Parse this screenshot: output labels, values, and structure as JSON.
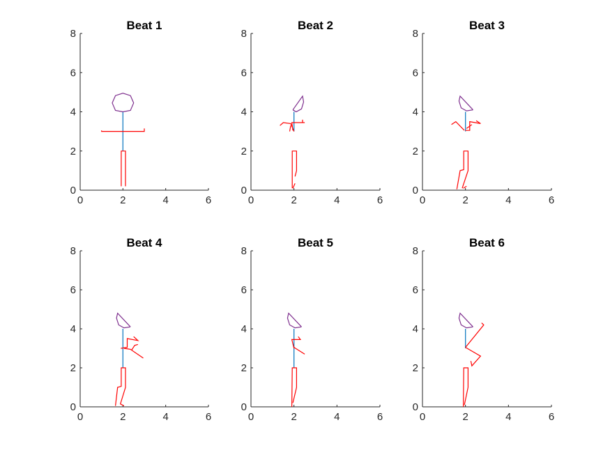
{
  "chart_data": [
    {
      "type": "line",
      "title": "Beat 1",
      "xlim": [
        0,
        6
      ],
      "ylim": [
        0,
        8
      ],
      "xticks": [
        "0",
        "2",
        "4",
        "6"
      ],
      "yticks": [
        "0",
        "2",
        "4",
        "6",
        "8"
      ],
      "figure": {
        "head": [
          [
            2.0,
            4.0
          ],
          [
            2.35,
            4.07
          ],
          [
            2.5,
            4.45
          ],
          [
            2.35,
            4.83
          ],
          [
            2.0,
            4.95
          ],
          [
            1.65,
            4.83
          ],
          [
            1.5,
            4.45
          ],
          [
            1.65,
            4.07
          ],
          [
            2.0,
            4.0
          ]
        ],
        "spine": [
          [
            2.0,
            4.0
          ],
          [
            2.0,
            2.0
          ]
        ],
        "limbs": [
          [
            [
              1.0,
              3.05
            ],
            [
              1.0,
              3.0
            ],
            [
              3.0,
              3.0
            ],
            [
              3.0,
              3.15
            ]
          ],
          [
            [
              2.0,
              3.0
            ],
            [
              2.0,
              3.0
            ]
          ],
          [
            [
              1.92,
              0.2
            ],
            [
              1.92,
              2.0
            ],
            [
              2.12,
              2.0
            ],
            [
              2.12,
              0.2
            ]
          ]
        ]
      }
    },
    {
      "type": "line",
      "title": "Beat 2",
      "xlim": [
        0,
        6
      ],
      "ylim": [
        0,
        8
      ],
      "xticks": [
        "0",
        "2",
        "4",
        "6"
      ],
      "yticks": [
        "0",
        "2",
        "4",
        "6",
        "8"
      ],
      "figure": {
        "head": [
          [
            1.95,
            4.1
          ],
          [
            2.1,
            4.0
          ],
          [
            2.35,
            4.15
          ],
          [
            2.45,
            4.5
          ],
          [
            2.4,
            4.8
          ],
          [
            1.95,
            4.1
          ]
        ],
        "spine": [
          [
            2.0,
            4.0
          ],
          [
            2.0,
            3.0
          ]
        ],
        "limbs": [
          [
            [
              2.0,
              3.0
            ],
            [
              1.85,
              3.4
            ],
            [
              1.5,
              3.45
            ],
            [
              1.35,
              3.3
            ]
          ],
          [
            [
              1.95,
              3.05
            ],
            [
              1.9,
              3.45
            ],
            [
              2.5,
              3.45
            ]
          ],
          [
            [
              2.4,
              3.45
            ],
            [
              2.4,
              3.6
            ]
          ],
          [
            [
              1.8,
              3.0
            ],
            [
              1.85,
              3.3
            ]
          ],
          [
            [
              1.92,
              0.1
            ],
            [
              1.92,
              2.0
            ],
            [
              2.12,
              2.0
            ],
            [
              2.12,
              1.0
            ],
            [
              2.05,
              0.7
            ]
          ],
          [
            [
              1.95,
              0.1
            ],
            [
              2.05,
              0.35
            ]
          ]
        ]
      }
    },
    {
      "type": "line",
      "title": "Beat 3",
      "xlim": [
        0,
        6
      ],
      "ylim": [
        0,
        8
      ],
      "xticks": [
        "0",
        "2",
        "4",
        "6"
      ],
      "yticks": [
        "0",
        "2",
        "4",
        "6",
        "8"
      ],
      "figure": {
        "head": [
          [
            2.35,
            4.1
          ],
          [
            2.05,
            4.05
          ],
          [
            1.8,
            4.2
          ],
          [
            1.7,
            4.55
          ],
          [
            1.75,
            4.8
          ],
          [
            2.35,
            4.1
          ]
        ],
        "spine": [
          [
            2.0,
            4.0
          ],
          [
            2.0,
            3.0
          ]
        ],
        "limbs": [
          [
            [
              1.95,
              3.05
            ],
            [
              1.55,
              3.5
            ],
            [
              1.35,
              3.35
            ]
          ],
          [
            [
              2.0,
              3.05
            ],
            [
              2.2,
              3.05
            ],
            [
              2.2,
              3.5
            ],
            [
              2.7,
              3.4
            ],
            [
              2.5,
              3.55
            ]
          ],
          [
            [
              2.05,
              3.15
            ],
            [
              2.3,
              3.35
            ]
          ],
          [
            [
              1.6,
              0.05
            ],
            [
              1.75,
              1.0
            ],
            [
              1.92,
              1.05
            ],
            [
              1.92,
              2.0
            ],
            [
              2.12,
              2.0
            ],
            [
              2.12,
              1.0
            ],
            [
              1.85,
              0.1
            ]
          ],
          [
            [
              1.9,
              0.1
            ],
            [
              2.05,
              0.2
            ]
          ]
        ]
      }
    },
    {
      "type": "line",
      "title": "Beat 4",
      "xlim": [
        0,
        6
      ],
      "ylim": [
        0,
        8
      ],
      "xticks": [
        "0",
        "2",
        "4",
        "6"
      ],
      "yticks": [
        "0",
        "2",
        "4",
        "6",
        "8"
      ],
      "figure": {
        "head": [
          [
            2.35,
            4.1
          ],
          [
            2.05,
            4.05
          ],
          [
            1.8,
            4.2
          ],
          [
            1.7,
            4.55
          ],
          [
            1.75,
            4.8
          ],
          [
            2.35,
            4.1
          ]
        ],
        "spine": [
          [
            2.0,
            4.0
          ],
          [
            2.0,
            2.0
          ]
        ],
        "limbs": [
          [
            [
              1.9,
              3.0
            ],
            [
              2.2,
              3.05
            ],
            [
              2.2,
              3.5
            ],
            [
              2.7,
              3.4
            ],
            [
              2.5,
              3.6
            ]
          ],
          [
            [
              2.05,
              3.0
            ],
            [
              2.35,
              2.95
            ],
            [
              2.95,
              2.5
            ]
          ],
          [
            [
              2.4,
              2.9
            ],
            [
              2.55,
              3.15
            ],
            [
              2.7,
              3.2
            ]
          ],
          [
            [
              1.65,
              0.05
            ],
            [
              1.75,
              1.0
            ],
            [
              1.92,
              1.05
            ],
            [
              1.92,
              2.0
            ],
            [
              2.12,
              2.0
            ],
            [
              2.12,
              1.0
            ],
            [
              1.88,
              0.15
            ],
            [
              2.05,
              0.05
            ]
          ]
        ]
      }
    },
    {
      "type": "line",
      "title": "Beat 5",
      "xlim": [
        0,
        6
      ],
      "ylim": [
        0,
        8
      ],
      "xticks": [
        "0",
        "2",
        "4",
        "6"
      ],
      "yticks": [
        "0",
        "2",
        "4",
        "6",
        "8"
      ],
      "figure": {
        "head": [
          [
            2.35,
            4.1
          ],
          [
            2.05,
            4.05
          ],
          [
            1.8,
            4.2
          ],
          [
            1.7,
            4.55
          ],
          [
            1.75,
            4.8
          ],
          [
            2.35,
            4.1
          ]
        ],
        "spine": [
          [
            2.0,
            4.0
          ],
          [
            2.0,
            2.0
          ]
        ],
        "limbs": [
          [
            [
              2.0,
              3.0
            ],
            [
              1.9,
              3.45
            ],
            [
              2.3,
              3.45
            ],
            [
              2.2,
              3.6
            ]
          ],
          [
            [
              2.0,
              3.05
            ],
            [
              2.5,
              2.7
            ]
          ],
          [
            [
              1.9,
              0.0
            ],
            [
              1.92,
              2.0
            ],
            [
              2.12,
              2.0
            ],
            [
              2.12,
              1.0
            ],
            [
              1.95,
              0.2
            ]
          ]
        ]
      }
    },
    {
      "type": "line",
      "title": "Beat 6",
      "xlim": [
        0,
        6
      ],
      "ylim": [
        0,
        8
      ],
      "xticks": [
        "0",
        "2",
        "4",
        "6"
      ],
      "yticks": [
        "0",
        "2",
        "4",
        "6",
        "8"
      ],
      "figure": {
        "head": [
          [
            2.35,
            4.1
          ],
          [
            2.05,
            4.05
          ],
          [
            1.8,
            4.2
          ],
          [
            1.7,
            4.55
          ],
          [
            1.75,
            4.8
          ],
          [
            2.35,
            4.1
          ]
        ],
        "spine": [
          [
            2.0,
            4.0
          ],
          [
            2.0,
            3.0
          ]
        ],
        "limbs": [
          [
            [
              2.0,
              3.05
            ],
            [
              2.85,
              4.2
            ],
            [
              2.75,
              4.3
            ]
          ],
          [
            [
              2.0,
              3.05
            ],
            [
              2.7,
              2.6
            ],
            [
              2.3,
              2.1
            ],
            [
              2.25,
              2.35
            ]
          ],
          [
            [
              1.9,
              0.0
            ],
            [
              1.92,
              2.0
            ],
            [
              2.12,
              2.0
            ],
            [
              2.12,
              1.0
            ],
            [
              1.95,
              0.1
            ]
          ]
        ]
      }
    }
  ],
  "colors": {
    "head": "#7E2F8E",
    "spine": "#0072BD",
    "limbs": "#FF0000",
    "axis": "#262626"
  }
}
